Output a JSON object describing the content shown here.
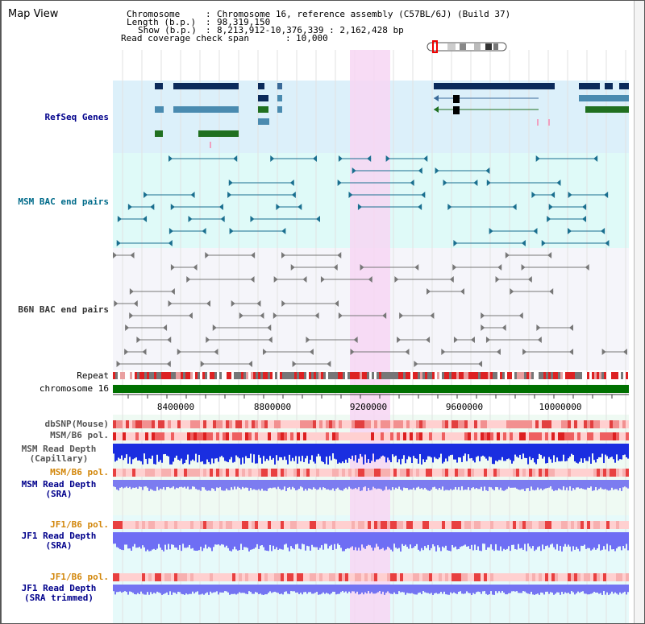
{
  "title": "Map View",
  "info": {
    "chromosome_label": "Chromosome",
    "chromosome_value": "Chromosome 16, reference assembly (C57BL/6J) (Build 37)",
    "length_label": "Length (b.p.)",
    "length_value": "98,319,150",
    "show_label": "Show (b.p.)",
    "show_value": "8,213,912-10,376,339 : 2,162,428 bp",
    "coverage_label": "Read coverage check span",
    "coverage_value": "10,000"
  },
  "tracks": {
    "refseq": "RefSeq Genes",
    "msm_bac": "MSM BAC end pairs",
    "b6n_bac": "B6N BAC end pairs",
    "repeat": "Repeat",
    "chromosome": "chromosome 16",
    "dbsnp": "dbSNP(Mouse)",
    "msm_b6_pol": "MSM/B6 pol.",
    "msm_depth_cap_1": "MSM Read Depth",
    "msm_depth_cap_2": "(Capillary)",
    "msm_b6_pol2": "MSM/B6 pol.",
    "msm_depth_sra_1": "MSM Read Depth",
    "msm_depth_sra_2": "(SRA)",
    "jf1_b6_pol": "JF1/B6 pol.",
    "jf1_depth_sra_1": "JF1 Read Depth",
    "jf1_depth_sra_2": "(SRA)",
    "jf1_b6_pol2": "JF1/B6 pol.",
    "jf1_depth_trim_1": "JF1 Read Depth",
    "jf1_depth_trim_2": "(SRA trimmed)"
  },
  "axis": {
    "ticks": [
      "8400000",
      "8800000",
      "9200000",
      "9600000",
      "10000000"
    ]
  },
  "colors": {
    "refseq_bg": "#dcf0fa",
    "msm_bg": "#dffaf8",
    "b6n_bg": "#f5f5fa",
    "highlight": "#f7d6f3",
    "chromosome_bar": "#007000",
    "label_blue": "#00008b",
    "label_teal": "#006b8a",
    "label_orange": "#d2860a",
    "label_dark": "#333333"
  }
}
